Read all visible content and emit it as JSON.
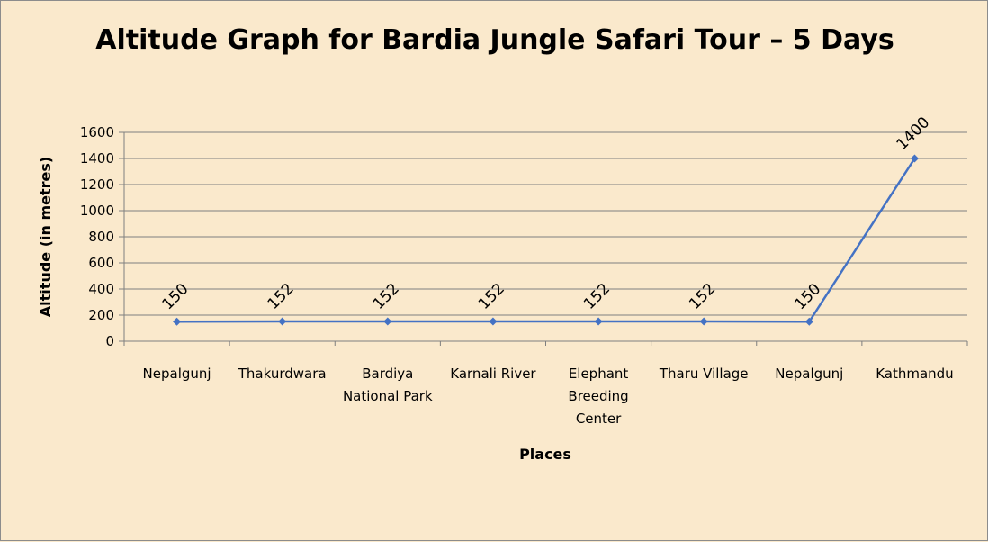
{
  "chart_data": {
    "type": "line",
    "title": "Altitude Graph for Bardia Jungle Safari Tour – 5 Days",
    "xlabel": "Places",
    "ylabel": "Altitude (in metres)",
    "ylim": [
      0,
      1600
    ],
    "yticks": [
      0,
      200,
      400,
      600,
      800,
      1000,
      1200,
      1400,
      1600
    ],
    "grid": true,
    "legend": "none",
    "categories": [
      [
        "Nepalgunj"
      ],
      [
        "Thakurdwara"
      ],
      [
        "Bardiya",
        "National Park"
      ],
      [
        "Karnali River"
      ],
      [
        "Elephant",
        "Breeding",
        "Center"
      ],
      [
        "Tharu Village"
      ],
      [
        "Nepalgunj"
      ],
      [
        "Kathmandu"
      ]
    ],
    "series": [
      {
        "values": [
          150,
          152,
          152,
          152,
          152,
          152,
          150,
          1400
        ],
        "labels": [
          "150",
          "152",
          "152",
          "152",
          "152",
          "152",
          "150",
          "1400"
        ],
        "color": "#4472C4"
      }
    ],
    "background_color": "#FAE9CC",
    "grid_color": "#7F7F7F"
  }
}
